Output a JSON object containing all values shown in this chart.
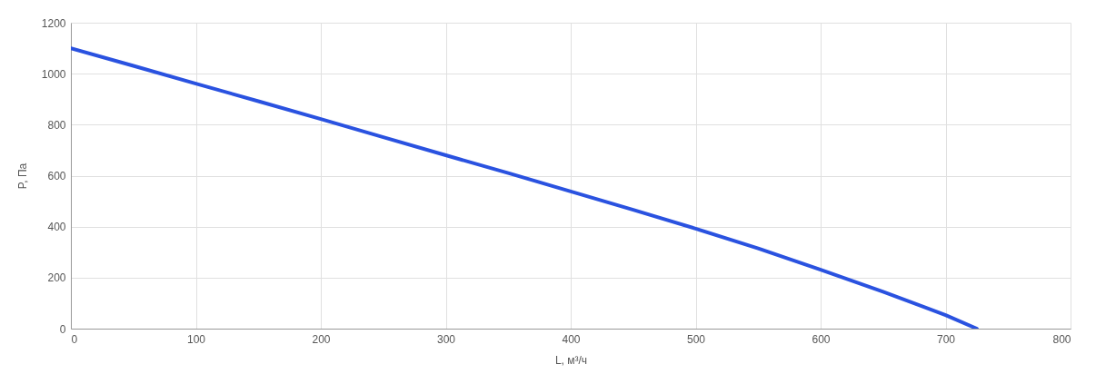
{
  "chart_data": {
    "type": "line",
    "xlabel": "L, м³/ч",
    "ylabel": "P, Па",
    "x": [
      0,
      50,
      100,
      150,
      200,
      250,
      300,
      350,
      400,
      450,
      500,
      550,
      600,
      650,
      700,
      725
    ],
    "series": [
      {
        "color": "#2a52e0",
        "values": [
          1100,
          1031,
          961,
          892,
          822,
          751,
          680,
          610,
          538,
          466,
          392,
          315,
          231,
          145,
          53,
          0
        ]
      }
    ],
    "xlim": [
      0,
      800
    ],
    "xticks": [
      0,
      100,
      200,
      300,
      400,
      500,
      600,
      700,
      800
    ],
    "ylim": [
      0,
      1200
    ],
    "yticks": [
      0,
      200,
      400,
      600,
      800,
      1000,
      1200
    ],
    "grid": true,
    "marker": "none",
    "line_style": "solid"
  }
}
